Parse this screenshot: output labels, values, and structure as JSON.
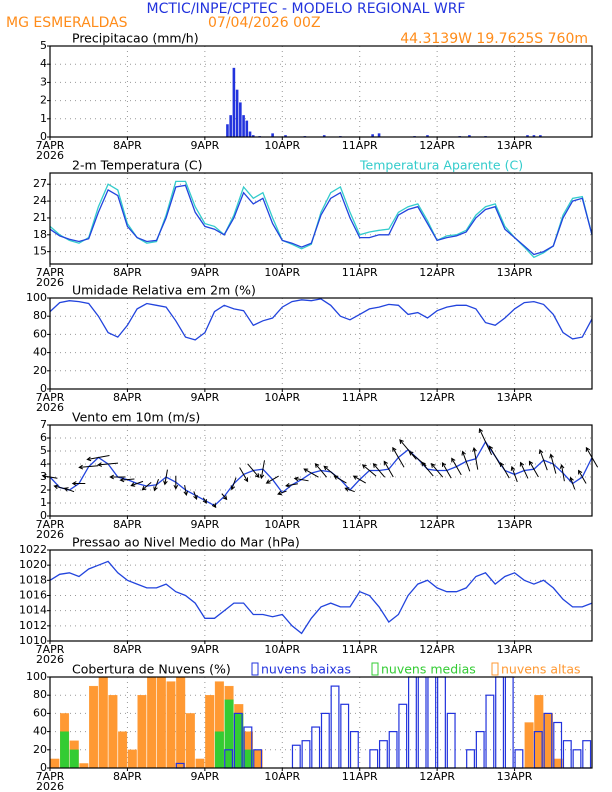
{
  "header": {
    "title": "MCTIC/INPE/CPTEC - MODELO REGIONAL WRF",
    "location": "MG ESMERALDAS",
    "run": "07/04/2026 00Z",
    "coords": "44.3139W 19.7625S 760m"
  },
  "chart_data": [
    {
      "type": "bar",
      "title": "Precipitacao (mm/h)",
      "year": "2026",
      "xlim": [
        0,
        168
      ],
      "xticks": [
        {
          "value": 0,
          "label": "7APR"
        },
        {
          "value": 24,
          "label": "8APR"
        },
        {
          "value": 48,
          "label": "9APR"
        },
        {
          "value": 72,
          "label": "10APR"
        },
        {
          "value": 96,
          "label": "11APR"
        },
        {
          "value": 120,
          "label": "12APR"
        },
        {
          "value": 144,
          "label": "13APR"
        }
      ],
      "ylim": [
        0,
        5
      ],
      "yticks": [
        0,
        1,
        2,
        3,
        4,
        5
      ],
      "grid": true,
      "x": [
        55,
        56,
        57,
        58,
        59,
        60,
        61,
        62,
        63,
        65,
        69,
        73,
        79,
        85,
        90,
        100,
        102,
        113,
        117,
        127,
        130,
        135,
        148,
        150,
        152
      ],
      "series": [
        {
          "color": "#2233dd",
          "values": [
            0.7,
            1.2,
            3.8,
            2.6,
            1.9,
            1.2,
            0.9,
            0.3,
            0.1,
            0.05,
            0.2,
            0.1,
            0.05,
            0.1,
            0.05,
            0.15,
            0.2,
            0.05,
            0.1,
            0.05,
            0.1,
            0.05,
            0.1,
            0.1,
            0.1
          ]
        }
      ]
    },
    {
      "type": "line",
      "title": "2-m Temperatura (C)",
      "year": "2026",
      "xlim": [
        0,
        168
      ],
      "xticks": [
        {
          "value": 0,
          "label": "7APR"
        },
        {
          "value": 24,
          "label": "8APR"
        },
        {
          "value": 48,
          "label": "9APR"
        },
        {
          "value": 72,
          "label": "10APR"
        },
        {
          "value": 96,
          "label": "11APR"
        },
        {
          "value": 120,
          "label": "12APR"
        },
        {
          "value": 144,
          "label": "13APR"
        }
      ],
      "ylim": [
        12.8,
        29
      ],
      "yticks": [
        15,
        18,
        21,
        24,
        27
      ],
      "grid": true,
      "x": [
        0,
        3,
        6,
        9,
        12,
        15,
        18,
        21,
        24,
        27,
        30,
        33,
        36,
        39,
        42,
        45,
        48,
        51,
        54,
        57,
        60,
        63,
        66,
        69,
        72,
        75,
        78,
        81,
        84,
        87,
        90,
        93,
        96,
        99,
        102,
        105,
        108,
        111,
        114,
        117,
        120,
        123,
        126,
        129,
        132,
        135,
        138,
        141,
        144,
        147,
        150,
        153,
        156,
        159,
        162,
        165,
        168
      ],
      "series": [
        {
          "name": "Temperatura Aparente (C)",
          "color": "#33cccc",
          "values": [
            19.5,
            18,
            17,
            16.5,
            17.5,
            23,
            27,
            26,
            20,
            17.5,
            16.5,
            16.8,
            21.5,
            27.5,
            27.5,
            23,
            20,
            19.5,
            18,
            21.5,
            26.5,
            24.5,
            25.5,
            21,
            17,
            16.3,
            15.5,
            16.3,
            22,
            25.5,
            26.5,
            22,
            18,
            18.5,
            18.8,
            19,
            22,
            23,
            23.5,
            20.5,
            17,
            17.8,
            18,
            18.8,
            21.5,
            23,
            23.5,
            19.5,
            17.5,
            15.8,
            14,
            14.8,
            16,
            21.5,
            24.5,
            24.8,
            18
          ]
        },
        {
          "color": "#2244dd",
          "values": [
            19,
            17.8,
            17.2,
            16.8,
            17.3,
            22,
            26,
            25,
            19.5,
            17.5,
            16.8,
            17,
            21,
            26.5,
            26.8,
            22,
            19.5,
            19,
            18,
            21,
            25.5,
            23.5,
            24.5,
            20,
            17,
            16.5,
            15.8,
            16.5,
            21.5,
            24.5,
            25.5,
            21,
            17.5,
            17.5,
            18,
            18,
            21.5,
            22.5,
            23,
            20,
            17,
            17.5,
            17.8,
            18.5,
            21,
            22.5,
            23,
            19,
            17.5,
            16,
            14.5,
            15,
            16,
            21,
            24,
            24.5,
            18
          ]
        }
      ]
    },
    {
      "type": "line",
      "title": "Umidade Relativa em 2m (%)",
      "year": "2026",
      "xlim": [
        0,
        168
      ],
      "xticks": [
        {
          "value": 0,
          "label": "7APR"
        },
        {
          "value": 24,
          "label": "8APR"
        },
        {
          "value": 48,
          "label": "9APR"
        },
        {
          "value": 72,
          "label": "10APR"
        },
        {
          "value": 96,
          "label": "11APR"
        },
        {
          "value": 120,
          "label": "12APR"
        },
        {
          "value": 144,
          "label": "13APR"
        }
      ],
      "ylim": [
        0,
        100
      ],
      "yticks": [
        0,
        20,
        40,
        60,
        80,
        100
      ],
      "grid": true,
      "x": [
        0,
        3,
        6,
        9,
        12,
        15,
        18,
        21,
        24,
        27,
        30,
        33,
        36,
        39,
        42,
        45,
        48,
        51,
        54,
        57,
        60,
        63,
        66,
        69,
        72,
        75,
        78,
        81,
        84,
        87,
        90,
        93,
        96,
        99,
        102,
        105,
        108,
        111,
        114,
        117,
        120,
        123,
        126,
        129,
        132,
        135,
        138,
        141,
        144,
        147,
        150,
        153,
        156,
        159,
        162,
        165,
        168
      ],
      "series": [
        {
          "color": "#2244dd",
          "values": [
            85,
            95,
            97,
            96,
            94,
            80,
            62,
            57,
            70,
            88,
            94,
            92,
            90,
            75,
            57,
            54,
            62,
            85,
            92,
            88,
            86,
            70,
            75,
            78,
            90,
            96,
            98,
            97,
            99,
            92,
            80,
            76,
            82,
            88,
            90,
            93,
            92,
            82,
            84,
            78,
            86,
            90,
            92,
            92,
            88,
            73,
            70,
            78,
            88,
            95,
            96,
            93,
            82,
            62,
            55,
            57,
            77
          ]
        }
      ]
    },
    {
      "type": "wind",
      "title": "Vento em 10m (m/s)",
      "year": "2026",
      "xlim": [
        0,
        168
      ],
      "xticks": [
        {
          "value": 0,
          "label": "7APR"
        },
        {
          "value": 24,
          "label": "8APR"
        },
        {
          "value": 48,
          "label": "9APR"
        },
        {
          "value": 72,
          "label": "10APR"
        },
        {
          "value": 96,
          "label": "11APR"
        },
        {
          "value": 120,
          "label": "12APR"
        },
        {
          "value": 144,
          "label": "13APR"
        }
      ],
      "ylim": [
        0,
        7
      ],
      "yticks": [
        0,
        1,
        2,
        3,
        4,
        5,
        6,
        7
      ],
      "grid": true,
      "x": [
        0,
        3,
        6,
        9,
        12,
        15,
        18,
        21,
        24,
        27,
        30,
        33,
        36,
        39,
        42,
        45,
        48,
        51,
        54,
        57,
        60,
        63,
        66,
        69,
        72,
        75,
        78,
        81,
        84,
        87,
        90,
        93,
        96,
        99,
        102,
        105,
        108,
        111,
        114,
        117,
        120,
        123,
        126,
        129,
        132,
        135,
        138,
        141,
        144,
        147,
        150,
        153,
        156,
        159,
        162,
        165,
        168
      ],
      "series": [
        {
          "color": "#2244dd",
          "values": [
            3,
            2.2,
            2,
            2.5,
            3.8,
            4.5,
            4,
            3,
            2.8,
            2.5,
            2.3,
            2.4,
            3,
            2.6,
            2,
            1.6,
            1.2,
            0.8,
            1.5,
            2.5,
            3.2,
            3.5,
            3.6,
            2.8,
            1.8,
            2.4,
            2.8,
            3.3,
            3.5,
            3.4,
            2.8,
            2,
            2.8,
            3.5,
            3.5,
            3.6,
            4.5,
            5.1,
            4.4,
            3.6,
            3.5,
            3.5,
            3.8,
            4.2,
            4.4,
            5.7,
            4.6,
            3.5,
            3.2,
            3.5,
            3.6,
            4.3,
            4,
            3.3,
            2.5,
            3,
            4.5
          ],
          "directions": [
            280,
            285,
            290,
            270,
            265,
            260,
            265,
            270,
            265,
            250,
            230,
            200,
            190,
            180,
            170,
            160,
            150,
            145,
            140,
            200,
            150,
            140,
            190,
            240,
            250,
            260,
            280,
            300,
            320,
            310,
            300,
            290,
            300,
            310,
            320,
            330,
            330,
            320,
            310,
            320,
            320,
            330,
            330,
            340,
            350,
            335,
            330,
            330,
            340,
            335,
            330,
            340,
            345,
            350,
            340,
            330,
            330
          ]
        }
      ]
    },
    {
      "type": "line",
      "title": "Pressao ao Nivel Medio do Mar (hPa)",
      "year": "2026",
      "xlim": [
        0,
        168
      ],
      "xticks": [
        {
          "value": 0,
          "label": "7APR"
        },
        {
          "value": 24,
          "label": "8APR"
        },
        {
          "value": 48,
          "label": "9APR"
        },
        {
          "value": 72,
          "label": "10APR"
        },
        {
          "value": 96,
          "label": "11APR"
        },
        {
          "value": 120,
          "label": "12APR"
        },
        {
          "value": 144,
          "label": "13APR"
        }
      ],
      "ylim": [
        1010,
        1022
      ],
      "yticks": [
        1010,
        1012,
        1014,
        1016,
        1018,
        1020,
        1022
      ],
      "grid": true,
      "x": [
        0,
        3,
        6,
        9,
        12,
        15,
        18,
        21,
        24,
        27,
        30,
        33,
        36,
        39,
        42,
        45,
        48,
        51,
        54,
        57,
        60,
        63,
        66,
        69,
        72,
        75,
        78,
        81,
        84,
        87,
        90,
        93,
        96,
        99,
        102,
        105,
        108,
        111,
        114,
        117,
        120,
        123,
        126,
        129,
        132,
        135,
        138,
        141,
        144,
        147,
        150,
        153,
        156,
        159,
        162,
        165,
        168
      ],
      "series": [
        {
          "color": "#2244dd",
          "values": [
            1018,
            1018.8,
            1019,
            1018.5,
            1019.5,
            1020,
            1020.5,
            1019,
            1018,
            1017.5,
            1017,
            1017,
            1017.5,
            1016.5,
            1016,
            1015,
            1013,
            1013,
            1014,
            1015,
            1015,
            1013.5,
            1013.5,
            1013.2,
            1013.5,
            1012,
            1011,
            1013,
            1014.5,
            1015,
            1014.5,
            1014.5,
            1016.5,
            1016,
            1014.5,
            1012.5,
            1013.5,
            1016,
            1017.5,
            1018,
            1017,
            1016.5,
            1016.5,
            1017,
            1018.5,
            1019,
            1017.5,
            1018.5,
            1019,
            1018,
            1017.5,
            1018,
            1017,
            1015.5,
            1014.5,
            1014.5,
            1015
          ]
        }
      ]
    },
    {
      "type": "cloud",
      "title": "Cobertura de Nuvens (%)",
      "year": "2026",
      "xlim": [
        0,
        168
      ],
      "xticks": [
        {
          "value": 0,
          "label": "7APR"
        },
        {
          "value": 24,
          "label": "8APR"
        },
        {
          "value": 48,
          "label": "9APR"
        },
        {
          "value": 72,
          "label": "10APR"
        },
        {
          "value": 96,
          "label": "11APR"
        },
        {
          "value": 120,
          "label": "12APR"
        },
        {
          "value": 144,
          "label": "13APR"
        }
      ],
      "ylim": [
        0,
        100
      ],
      "yticks": [
        0,
        20,
        40,
        60,
        80,
        100
      ],
      "grid": true,
      "x": [
        0,
        3,
        6,
        9,
        12,
        15,
        18,
        21,
        24,
        27,
        30,
        33,
        36,
        39,
        42,
        45,
        48,
        51,
        54,
        57,
        60,
        63,
        66,
        69,
        72,
        75,
        78,
        81,
        84,
        87,
        90,
        93,
        96,
        99,
        102,
        105,
        108,
        111,
        114,
        117,
        120,
        123,
        126,
        129,
        132,
        135,
        138,
        141,
        144,
        147,
        150,
        153,
        156,
        159,
        162,
        165,
        168
      ],
      "series": [
        {
          "name": "nuvens baixas",
          "color": "#2233dd",
          "filled": false,
          "values": [
            0,
            0,
            0,
            0,
            0,
            0,
            0,
            0,
            0,
            0,
            0,
            0,
            0,
            5,
            0,
            0,
            0,
            0,
            20,
            60,
            45,
            20,
            0,
            0,
            0,
            25,
            30,
            45,
            60,
            90,
            70,
            40,
            0,
            20,
            30,
            40,
            70,
            100,
            100,
            100,
            100,
            60,
            0,
            20,
            40,
            80,
            100,
            100,
            20,
            0,
            40,
            60,
            50,
            30,
            20,
            30,
            20
          ]
        },
        {
          "name": "nuvens medias",
          "color": "#33cc33",
          "filled": true,
          "values": [
            0,
            40,
            20,
            0,
            0,
            0,
            0,
            0,
            0,
            0,
            0,
            0,
            0,
            0,
            0,
            0,
            0,
            40,
            75,
            60,
            20,
            0,
            0,
            0,
            0,
            0,
            0,
            0,
            0,
            0,
            0,
            0,
            0,
            0,
            0,
            0,
            0,
            0,
            0,
            0,
            0,
            0,
            0,
            0,
            0,
            0,
            0,
            0,
            0,
            0,
            0,
            0,
            0,
            0,
            0,
            0,
            0
          ]
        },
        {
          "name": "nuvens altas",
          "color": "#ff9933",
          "filled": true,
          "values": [
            10,
            60,
            30,
            5,
            90,
            100,
            80,
            40,
            20,
            80,
            100,
            100,
            95,
            100,
            60,
            10,
            80,
            95,
            90,
            70,
            40,
            20,
            0,
            0,
            0,
            0,
            0,
            0,
            0,
            0,
            0,
            0,
            0,
            0,
            0,
            0,
            0,
            0,
            0,
            0,
            0,
            0,
            0,
            0,
            0,
            0,
            0,
            0,
            0,
            50,
            80,
            60,
            10,
            0,
            0,
            0,
            0
          ]
        }
      ]
    }
  ]
}
